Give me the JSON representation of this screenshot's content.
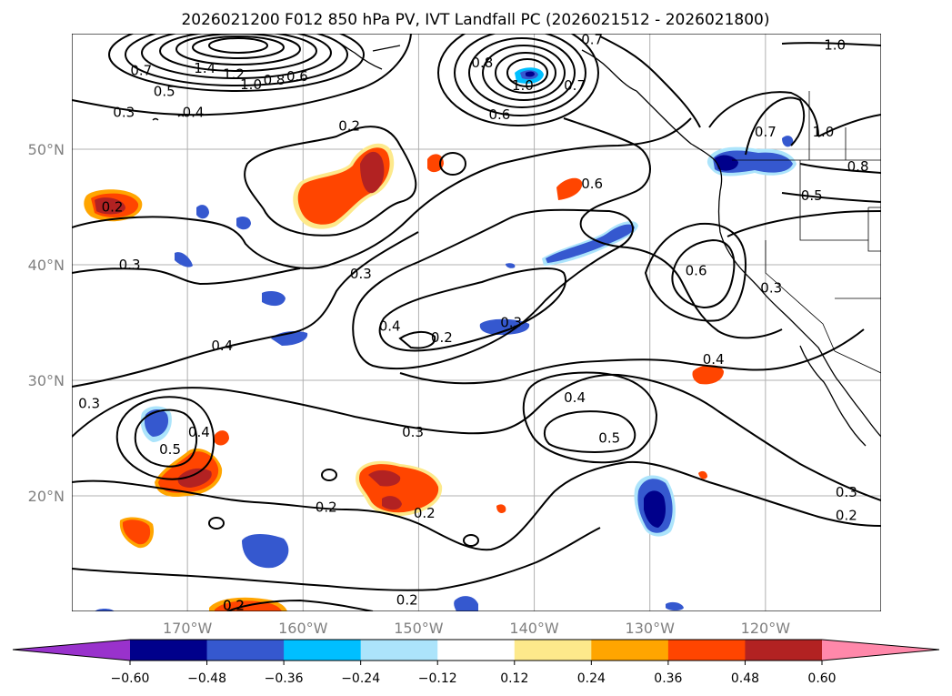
{
  "title": "2026021200 F012 850 hPa PV, IVT Landfall PC (2026021512 - 2026021800)",
  "lon_ticks": [
    {
      "lon": -170,
      "label": "170°W"
    },
    {
      "lon": -160,
      "label": "160°W"
    },
    {
      "lon": -150,
      "label": "150°W"
    },
    {
      "lon": -140,
      "label": "140°W"
    },
    {
      "lon": -130,
      "label": "130°W"
    },
    {
      "lon": -120,
      "label": "120°W"
    }
  ],
  "lat_ticks": [
    {
      "lat": 20,
      "label": "20°N"
    },
    {
      "lat": 30,
      "label": "30°N"
    },
    {
      "lat": 40,
      "label": "40°N"
    },
    {
      "lat": 50,
      "label": "50°N"
    }
  ],
  "extent": {
    "lon_min": -180,
    "lon_max": -110,
    "lat_min": 10,
    "lat_max": 60
  },
  "colorbar": {
    "ticks": [
      "−0.60",
      "−0.48",
      "−0.36",
      "−0.24",
      "−0.12",
      "0.12",
      "0.24",
      "0.36",
      "0.48",
      "0.60"
    ],
    "colors": {
      "under": "#9932cc",
      "bins": [
        "#00008b",
        "#3558cf",
        "#00bfff",
        "#ace4fb",
        "#ffffff",
        "#fde98b",
        "#ffa500",
        "#ff4500",
        "#b22222"
      ],
      "over": "#ff88aa"
    }
  },
  "pv_contour_labels": [
    {
      "text": "0.2",
      "lon": -176.5,
      "lat": 45.0
    },
    {
      "text": "0.3",
      "lon": -175.0,
      "lat": 40.0
    },
    {
      "text": "0.2",
      "lon": -156.0,
      "lat": 52.0
    },
    {
      "text": "0.3",
      "lon": -155.0,
      "lat": 39.2
    },
    {
      "text": "0.4",
      "lon": -152.5,
      "lat": 34.7
    },
    {
      "text": "0.2",
      "lon": -148.0,
      "lat": 33.7
    },
    {
      "text": "0.3",
      "lon": -142.0,
      "lat": 35.0
    },
    {
      "text": "0.4",
      "lon": -167.0,
      "lat": 33.0
    },
    {
      "text": "0.3",
      "lon": -178.5,
      "lat": 28.0
    },
    {
      "text": "0.4",
      "lon": -169.0,
      "lat": 25.5
    },
    {
      "text": "0.5",
      "lon": -171.5,
      "lat": 24.0
    },
    {
      "text": "0.3",
      "lon": -150.5,
      "lat": 25.5
    },
    {
      "text": "0.2",
      "lon": -158.0,
      "lat": 19.0
    },
    {
      "text": "0.2",
      "lon": -149.5,
      "lat": 18.5
    },
    {
      "text": "0.2",
      "lon": -151.0,
      "lat": 11.0
    },
    {
      "text": "0.2",
      "lon": -166.0,
      "lat": 10.5
    },
    {
      "text": "0.4",
      "lon": -136.5,
      "lat": 28.5
    },
    {
      "text": "0.5",
      "lon": -133.5,
      "lat": 25.0
    },
    {
      "text": "0.4",
      "lon": -124.5,
      "lat": 31.8
    },
    {
      "text": "0.6",
      "lon": -135.0,
      "lat": 47.0
    },
    {
      "text": "0.6",
      "lon": -126.0,
      "lat": 39.5
    },
    {
      "text": "0.3",
      "lon": -119.5,
      "lat": 38.0
    },
    {
      "text": "0.5",
      "lon": -116.0,
      "lat": 46.0
    },
    {
      "text": "0.8",
      "lon": -112.0,
      "lat": 48.5
    },
    {
      "text": "0.7",
      "lon": -120.0,
      "lat": 51.5
    },
    {
      "text": "1.0",
      "lon": -115.0,
      "lat": 51.5
    },
    {
      "text": "1.0",
      "lon": -114.0,
      "lat": 59.0
    },
    {
      "text": "0.7",
      "lon": -135.0,
      "lat": 59.5
    },
    {
      "text": "0.8",
      "lon": -144.5,
      "lat": 57.5
    },
    {
      "text": "1.0",
      "lon": -141.0,
      "lat": 55.5
    },
    {
      "text": "0.7",
      "lon": -136.5,
      "lat": 55.5
    },
    {
      "text": "0.6",
      "lon": -143.0,
      "lat": 53.0
    },
    {
      "text": "1.4",
      "lon": -168.5,
      "lat": 57.0
    },
    {
      "text": "1.2",
      "lon": -166.0,
      "lat": 56.5
    },
    {
      "text": "1.0",
      "lon": -164.5,
      "lat": 55.6
    },
    {
      "text": "0.8",
      "lon": -162.5,
      "lat": 56.0
    },
    {
      "text": "0.6",
      "lon": -160.5,
      "lat": 56.3
    },
    {
      "text": "0.7",
      "lon": -174.0,
      "lat": 56.8
    },
    {
      "text": "0.5",
      "lon": -172.0,
      "lat": 55.0
    },
    {
      "text": "0.4",
      "lon": -169.5,
      "lat": 53.2
    },
    {
      "text": "0.3",
      "lon": -175.5,
      "lat": 53.2
    },
    {
      "text": "0.3",
      "lon": -113.0,
      "lat": 20.3
    },
    {
      "text": "0.2",
      "lon": -113.0,
      "lat": 18.3
    },
    {
      "text": "0.2",
      "lon": -166.0,
      "lat": 10.5
    }
  ],
  "ivt_pc_label": "IVT Landfall PC"
}
